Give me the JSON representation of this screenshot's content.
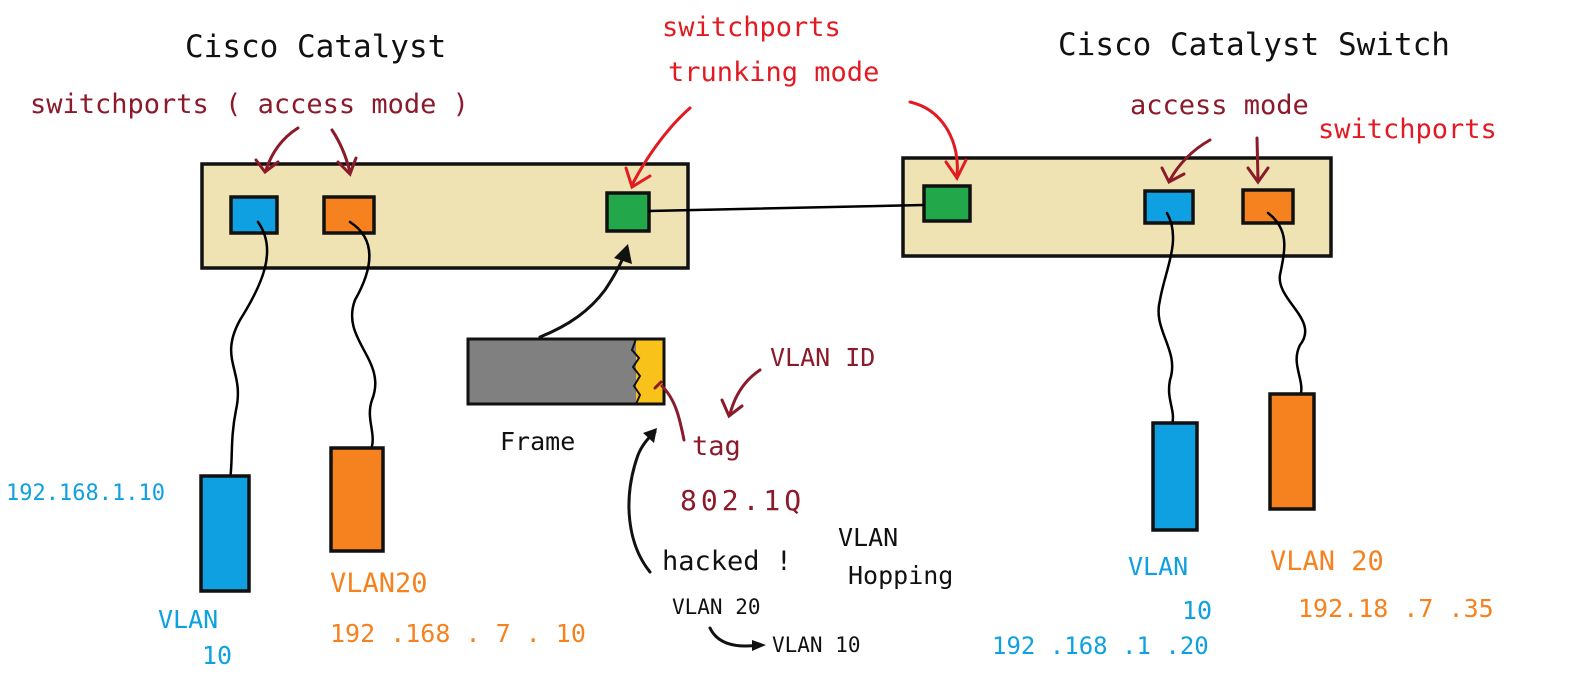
{
  "colors": {
    "switch_fill": "#efe3b4",
    "vlan10": "#0ea0e0",
    "vlan20": "#f5821f",
    "trunk": "#22a84a",
    "frame_body": "#808080",
    "tag": "#f8c21b",
    "label_red": "#e21b23",
    "label_maroon": "#8b1a2b"
  },
  "left_switch": {
    "title": "Cisco Catalyst",
    "port_note": "switchports ( access mode )"
  },
  "right_switch": {
    "title": "Cisco Catalyst Switch",
    "port_note_line1": "access mode",
    "port_note_line2": "switchports"
  },
  "trunk_note": {
    "line1": "switchports",
    "line2": "trunking mode"
  },
  "frame": {
    "label": "Frame",
    "tag_label": "tag",
    "vlan_id_label": "VLAN ID",
    "standard": "802.1Q"
  },
  "attack": {
    "hacked": "hacked !",
    "vlan_word": "VLAN",
    "hopping": "Hopping",
    "from_vlan": "VLAN 20",
    "to_vlan": "VLAN 10"
  },
  "hosts": {
    "left_vlan10_ip": "192.168.1.10",
    "left_vlan10_label_line1": "VLAN",
    "left_vlan10_label_line2": "10",
    "left_vlan20_label": "VLAN20",
    "left_vlan20_ip": "192 .168 . 7 . 10",
    "right_vlan10_label_line1": "VLAN",
    "right_vlan10_label_line2": "10",
    "right_vlan10_ip": "192 .168 .1 .20",
    "right_vlan20_label": "VLAN 20",
    "right_vlan20_ip": "192.18 .7 .35"
  }
}
